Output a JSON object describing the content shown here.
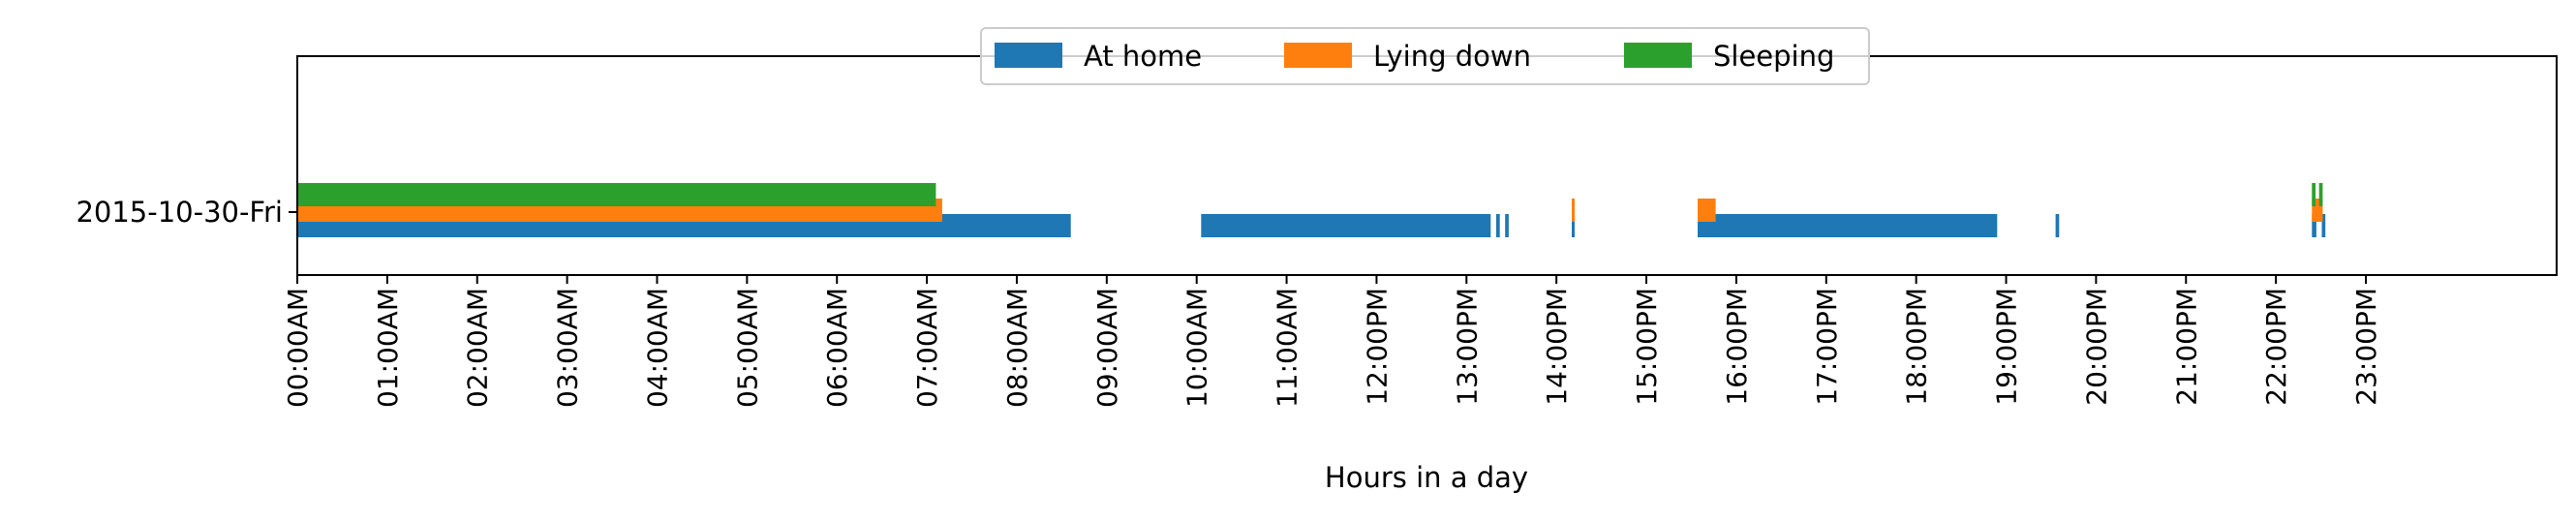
{
  "chart_data": {
    "type": "bar",
    "orientation": "horizontal-timeline",
    "title": "",
    "xlabel": "Hours in a day",
    "ylabel": "",
    "xlim": [
      0,
      24
    ],
    "x_ticks": [
      0,
      1,
      2,
      3,
      4,
      5,
      6,
      7,
      8,
      9,
      10,
      11,
      12,
      13,
      14,
      15,
      16,
      17,
      18,
      19,
      20,
      21,
      22,
      23
    ],
    "x_tick_labels": [
      "00:00AM",
      "01:00AM",
      "02:00AM",
      "03:00AM",
      "04:00AM",
      "05:00AM",
      "06:00AM",
      "07:00AM",
      "08:00AM",
      "09:00AM",
      "10:00AM",
      "11:00AM",
      "12:00PM",
      "13:00PM",
      "14:00PM",
      "15:00PM",
      "16:00PM",
      "17:00PM",
      "18:00PM",
      "19:00PM",
      "20:00PM",
      "21:00PM",
      "22:00PM",
      "23:00PM"
    ],
    "categories": [
      "2015-10-30-Fri"
    ],
    "legend_position": "top-center",
    "grid": false,
    "series": [
      {
        "name": "At home",
        "color": "#1f77b4",
        "intervals": [
          [
            0.0,
            8.6
          ],
          [
            10.05,
            13.27
          ],
          [
            13.33,
            13.37
          ],
          [
            13.43,
            13.47
          ],
          [
            14.17,
            14.2
          ],
          [
            15.57,
            18.9
          ],
          [
            19.55,
            19.59
          ],
          [
            22.4,
            22.45
          ],
          [
            22.51,
            22.55
          ]
        ]
      },
      {
        "name": "Lying down",
        "color": "#ff7f0e",
        "intervals": [
          [
            0.0,
            7.17
          ],
          [
            14.17,
            14.2
          ],
          [
            15.57,
            15.77
          ],
          [
            22.4,
            22.52
          ]
        ]
      },
      {
        "name": "Sleeping",
        "color": "#2ca02c",
        "intervals": [
          [
            0.0,
            7.1
          ],
          [
            22.4,
            22.44
          ],
          [
            22.48,
            22.52
          ]
        ]
      }
    ]
  }
}
